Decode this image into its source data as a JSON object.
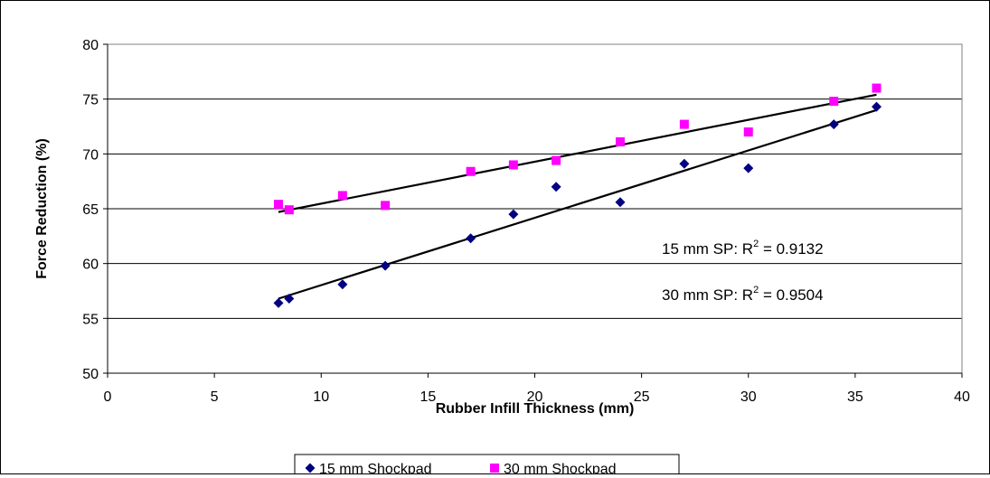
{
  "chart_data": {
    "type": "scatter",
    "xlabel": "Rubber Infill Thickness (mm)",
    "ylabel": "Force Reduction (%)",
    "xlim": [
      0,
      40
    ],
    "ylim": [
      50,
      80
    ],
    "x_ticks": [
      0,
      5,
      10,
      15,
      20,
      25,
      30,
      35,
      40
    ],
    "y_ticks": [
      50,
      55,
      60,
      65,
      70,
      75,
      80
    ],
    "grid": "horizontal",
    "legend_position": "bottom",
    "series": [
      {
        "name": "15 mm Shockpad",
        "marker": "diamond",
        "color": "#000080",
        "x": [
          8,
          8.5,
          11,
          13,
          17,
          19,
          21,
          24,
          27,
          30,
          34,
          36
        ],
        "y": [
          56.4,
          56.8,
          58.1,
          59.8,
          62.3,
          64.5,
          67.0,
          65.6,
          69.1,
          68.7,
          72.7,
          74.3
        ],
        "trendline": {
          "x": [
            8,
            36
          ],
          "y": [
            56.8,
            74.0
          ]
        }
      },
      {
        "name": "30 mm Shockpad",
        "marker": "square",
        "color": "#ff00ff",
        "x": [
          8,
          8.5,
          11,
          13,
          17,
          19,
          21,
          24,
          27,
          30,
          34,
          36
        ],
        "y": [
          65.4,
          64.9,
          66.2,
          65.3,
          68.4,
          69.0,
          69.4,
          71.1,
          72.7,
          72.0,
          74.8,
          76.0
        ],
        "trendline": {
          "x": [
            8,
            36
          ],
          "y": [
            64.7,
            75.4
          ]
        }
      }
    ],
    "annotations": [
      {
        "prefix": "15 mm SP: R",
        "sup": "2",
        "suffix": " = 0.9132"
      },
      {
        "prefix": "30 mm SP: R",
        "sup": "2",
        "suffix": " = 0.9504"
      }
    ]
  }
}
